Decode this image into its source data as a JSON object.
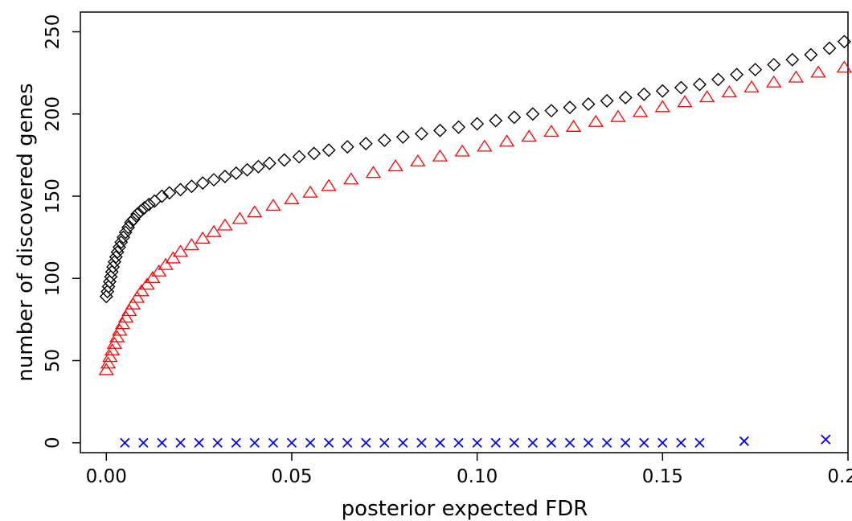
{
  "chart_data": {
    "type": "scatter",
    "title": "",
    "xlabel": "posterior expected FDR",
    "ylabel": "number of discovered genes",
    "xlim": [
      -0.007,
      0.2
    ],
    "ylim": [
      -6,
      262
    ],
    "x_ticks": [
      0.0,
      0.05,
      0.1,
      0.15,
      0.2
    ],
    "x_tick_labels": [
      "0.00",
      "0.05",
      "0.10",
      "0.15",
      "0.20"
    ],
    "y_ticks": [
      0,
      50,
      100,
      150,
      200,
      250
    ],
    "y_tick_labels": [
      "0",
      "50",
      "100",
      "150",
      "200",
      "250"
    ],
    "grid": false,
    "legend": "none",
    "series": [
      {
        "marker": "diamond",
        "color": "#000000",
        "points": [
          [
            0.0,
            89
          ],
          [
            0.0003,
            92
          ],
          [
            0.0006,
            95
          ],
          [
            0.0009,
            98
          ],
          [
            0.0012,
            101
          ],
          [
            0.0015,
            104
          ],
          [
            0.0018,
            107
          ],
          [
            0.0022,
            110
          ],
          [
            0.0026,
            113
          ],
          [
            0.003,
            116
          ],
          [
            0.0035,
            119
          ],
          [
            0.004,
            122
          ],
          [
            0.0046,
            125
          ],
          [
            0.0052,
            128
          ],
          [
            0.0059,
            131
          ],
          [
            0.0066,
            134
          ],
          [
            0.0074,
            136
          ],
          [
            0.0083,
            139
          ],
          [
            0.0093,
            141
          ],
          [
            0.0103,
            143
          ],
          [
            0.0115,
            145
          ],
          [
            0.013,
            147
          ],
          [
            0.015,
            150
          ],
          [
            0.017,
            152
          ],
          [
            0.02,
            154
          ],
          [
            0.023,
            156
          ],
          [
            0.026,
            158
          ],
          [
            0.029,
            160
          ],
          [
            0.032,
            162
          ],
          [
            0.035,
            164
          ],
          [
            0.038,
            166
          ],
          [
            0.041,
            168
          ],
          [
            0.044,
            170
          ],
          [
            0.048,
            172
          ],
          [
            0.052,
            174
          ],
          [
            0.056,
            176
          ],
          [
            0.06,
            178
          ],
          [
            0.065,
            180
          ],
          [
            0.07,
            182
          ],
          [
            0.075,
            184
          ],
          [
            0.08,
            186
          ],
          [
            0.085,
            188
          ],
          [
            0.09,
            190
          ],
          [
            0.095,
            192
          ],
          [
            0.1,
            194
          ],
          [
            0.105,
            196
          ],
          [
            0.11,
            198
          ],
          [
            0.115,
            200
          ],
          [
            0.12,
            202
          ],
          [
            0.125,
            204
          ],
          [
            0.13,
            206
          ],
          [
            0.135,
            208
          ],
          [
            0.14,
            210
          ],
          [
            0.145,
            212
          ],
          [
            0.15,
            214
          ],
          [
            0.155,
            216
          ],
          [
            0.16,
            218
          ],
          [
            0.165,
            221
          ],
          [
            0.17,
            224
          ],
          [
            0.175,
            227
          ],
          [
            0.18,
            230
          ],
          [
            0.185,
            233
          ],
          [
            0.19,
            236
          ],
          [
            0.195,
            240
          ],
          [
            0.199,
            244
          ]
        ]
      },
      {
        "marker": "triangle",
        "color": "#ff0000",
        "points": [
          [
            0.0,
            44
          ],
          [
            0.0005,
            48
          ],
          [
            0.001,
            52
          ],
          [
            0.0016,
            56
          ],
          [
            0.0022,
            60
          ],
          [
            0.0029,
            64
          ],
          [
            0.0036,
            68
          ],
          [
            0.0044,
            72
          ],
          [
            0.0053,
            76
          ],
          [
            0.0062,
            80
          ],
          [
            0.0072,
            84
          ],
          [
            0.0083,
            88
          ],
          [
            0.0095,
            92
          ],
          [
            0.011,
            96
          ],
          [
            0.0125,
            100
          ],
          [
            0.0142,
            104
          ],
          [
            0.016,
            108
          ],
          [
            0.018,
            112
          ],
          [
            0.02,
            116
          ],
          [
            0.023,
            120
          ],
          [
            0.026,
            124
          ],
          [
            0.029,
            128
          ],
          [
            0.032,
            132
          ],
          [
            0.036,
            136
          ],
          [
            0.04,
            140
          ],
          [
            0.045,
            144
          ],
          [
            0.05,
            148
          ],
          [
            0.055,
            152
          ],
          [
            0.06,
            156
          ],
          [
            0.066,
            160
          ],
          [
            0.072,
            164
          ],
          [
            0.078,
            168
          ],
          [
            0.084,
            171
          ],
          [
            0.09,
            174
          ],
          [
            0.096,
            177
          ],
          [
            0.102,
            180
          ],
          [
            0.108,
            183
          ],
          [
            0.114,
            186
          ],
          [
            0.12,
            189
          ],
          [
            0.126,
            192
          ],
          [
            0.132,
            195
          ],
          [
            0.138,
            198
          ],
          [
            0.144,
            201
          ],
          [
            0.15,
            204
          ],
          [
            0.156,
            207
          ],
          [
            0.162,
            210
          ],
          [
            0.168,
            213
          ],
          [
            0.174,
            216
          ],
          [
            0.18,
            219
          ],
          [
            0.186,
            222
          ],
          [
            0.192,
            225
          ],
          [
            0.199,
            228
          ]
        ]
      },
      {
        "marker": "x",
        "color": "#0000ff",
        "points": [
          [
            0.005,
            0
          ],
          [
            0.01,
            0
          ],
          [
            0.015,
            0
          ],
          [
            0.02,
            0
          ],
          [
            0.025,
            0
          ],
          [
            0.03,
            0
          ],
          [
            0.035,
            0
          ],
          [
            0.04,
            0
          ],
          [
            0.045,
            0
          ],
          [
            0.05,
            0
          ],
          [
            0.055,
            0
          ],
          [
            0.06,
            0
          ],
          [
            0.065,
            0
          ],
          [
            0.07,
            0
          ],
          [
            0.075,
            0
          ],
          [
            0.08,
            0
          ],
          [
            0.085,
            0
          ],
          [
            0.09,
            0
          ],
          [
            0.095,
            0
          ],
          [
            0.1,
            0
          ],
          [
            0.105,
            0
          ],
          [
            0.11,
            0
          ],
          [
            0.115,
            0
          ],
          [
            0.12,
            0
          ],
          [
            0.125,
            0
          ],
          [
            0.13,
            0
          ],
          [
            0.135,
            0
          ],
          [
            0.14,
            0
          ],
          [
            0.145,
            0
          ],
          [
            0.15,
            0
          ],
          [
            0.155,
            0
          ],
          [
            0.16,
            0
          ],
          [
            0.172,
            1
          ],
          [
            0.194,
            2
          ]
        ]
      }
    ]
  }
}
